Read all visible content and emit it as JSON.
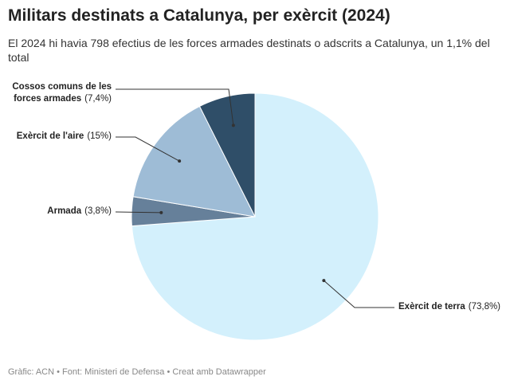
{
  "chart_data": {
    "type": "pie",
    "title": "Militars destinats a Catalunya, per exèrcit (2024)",
    "subtitle": "El 2024 hi havia 798 efectius de les forces armades destinats o adscrits a Catalunya, un 1,1% del total",
    "footer": "Gràfic: ACN • Font: Ministeri de Defensa • Creat amb Datawrapper",
    "categories": [
      "Exèrcit de terra",
      "Armada",
      "Exèrcit de l'aire",
      "Cossos comuns de les forces armades"
    ],
    "values": [
      73.8,
      3.8,
      15,
      7.4
    ],
    "value_labels": [
      "(73,8%)",
      "(3,8%)",
      "(15%)",
      "(7,4%)"
    ],
    "colors": [
      "#d3f0fc",
      "#66809a",
      "#9ebcd6",
      "#2f4e68"
    ]
  }
}
